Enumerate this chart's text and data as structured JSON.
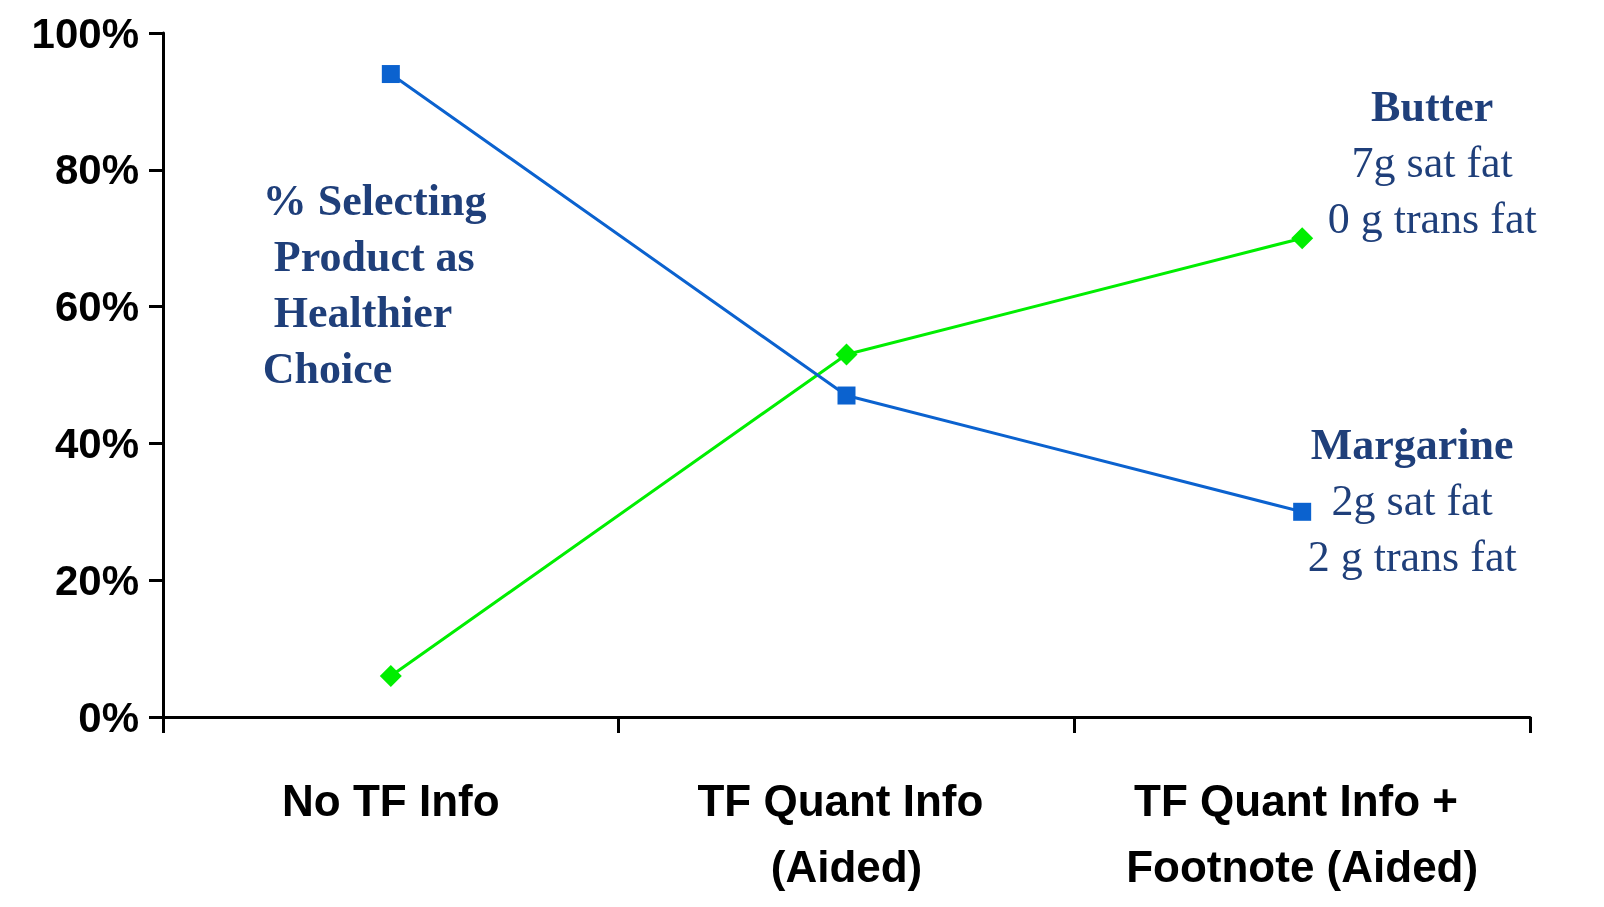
{
  "chart_data": {
    "type": "line",
    "categories": [
      "No TF Info",
      "TF Quant Info (Aided)",
      "TF Quant Info + Footnote (Aided)"
    ],
    "series": [
      {
        "name": "Butter",
        "color": "#00ee00",
        "marker": "diamond",
        "values": [
          6,
          53,
          70
        ]
      },
      {
        "name": "Margarine",
        "color": "#0b62cf",
        "marker": "square",
        "values": [
          94,
          47,
          30
        ]
      }
    ],
    "ylim": [
      0,
      100
    ],
    "yticks": [
      {
        "value": 0,
        "label": "0%"
      },
      {
        "value": 20,
        "label": "20%"
      },
      {
        "value": 40,
        "label": "40%"
      },
      {
        "value": 60,
        "label": "60%"
      },
      {
        "value": 80,
        "label": "80%"
      },
      {
        "value": 100,
        "label": "100%"
      }
    ],
    "annotations": [
      "% Selecting Product as Healthier Choice",
      "7g sat fat\n0 g trans fat",
      "2g sat fat\n2 g trans fat"
    ],
    "grid": false,
    "legend": false
  }
}
